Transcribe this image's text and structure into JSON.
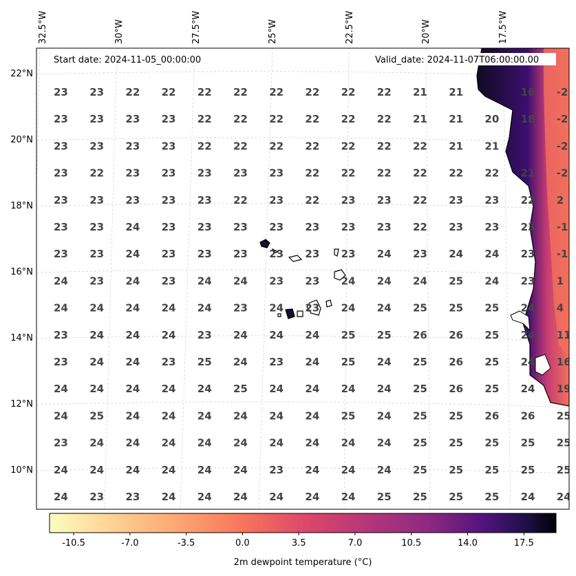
{
  "header": {
    "start_date": "Start date: 2024-11-05_00:00:00",
    "valid_date": "Valid_date: 2024-11-07T06:00:00.00"
  },
  "axes": {
    "lon_labels": [
      "32.5°W",
      "30°W",
      "27.5°W",
      "25°W",
      "22.5°W",
      "20°W",
      "17.5°W"
    ],
    "lat_labels": [
      "22°N",
      "20°N",
      "18°N",
      "16°N",
      "14°N",
      "12°N",
      "10°N"
    ]
  },
  "colorbar": {
    "label": "2m dewpoint temperature ($^\\circ$C)",
    "ticks": [
      "-10.5",
      "-7.0",
      "-3.5",
      "0.0",
      "3.5",
      "7.0",
      "10.5",
      "14.0",
      "17.5"
    ],
    "colormap": "magma_r",
    "range": [
      -12.0,
      19.5
    ]
  },
  "colors": {
    "grid_values": "#444444",
    "land_dark": "#100b20",
    "coast_hot": "#f0685e",
    "colorbar_low": "#fcfdbf",
    "colorbar_high": "#000004"
  },
  "value_grid": [
    [
      "23",
      "23",
      "22",
      "22",
      "22",
      "22",
      "22",
      "22",
      "22",
      "22",
      "21",
      "21",
      "",
      "16",
      "-2"
    ],
    [
      "23",
      "23",
      "23",
      "23",
      "22",
      "22",
      "22",
      "22",
      "22",
      "22",
      "21",
      "21",
      "20",
      "18",
      "-2"
    ],
    [
      "23",
      "23",
      "23",
      "23",
      "22",
      "22",
      "22",
      "22",
      "22",
      "22",
      "22",
      "21",
      "21",
      "",
      "-2"
    ],
    [
      "23",
      "22",
      "23",
      "23",
      "23",
      "23",
      "23",
      "22",
      "22",
      "22",
      "22",
      "22",
      "22",
      "21",
      "-2"
    ],
    [
      "23",
      "23",
      "23",
      "23",
      "23",
      "22",
      "23",
      "22",
      "23",
      "23",
      "22",
      "23",
      "23",
      "22",
      "2"
    ],
    [
      "23",
      "23",
      "24",
      "23",
      "23",
      "23",
      "23",
      "23",
      "23",
      "23",
      "22",
      "23",
      "23",
      "23",
      "-1"
    ],
    [
      "23",
      "23",
      "24",
      "23",
      "23",
      "23",
      "23",
      "23",
      "23",
      "24",
      "23",
      "24",
      "24",
      "23",
      "-1"
    ],
    [
      "24",
      "23",
      "24",
      "23",
      "24",
      "24",
      "23",
      "23",
      "24",
      "24",
      "24",
      "25",
      "24",
      "23",
      "1"
    ],
    [
      "24",
      "24",
      "24",
      "24",
      "24",
      "23",
      "24",
      "23",
      "24",
      "24",
      "25",
      "25",
      "25",
      "24",
      "4"
    ],
    [
      "23",
      "24",
      "24",
      "24",
      "23",
      "24",
      "24",
      "24",
      "25",
      "25",
      "26",
      "26",
      "25",
      "24",
      "11"
    ],
    [
      "23",
      "24",
      "24",
      "23",
      "25",
      "24",
      "23",
      "24",
      "25",
      "24",
      "25",
      "26",
      "25",
      "24",
      "16"
    ],
    [
      "24",
      "24",
      "24",
      "24",
      "24",
      "25",
      "24",
      "24",
      "24",
      "24",
      "25",
      "26",
      "25",
      "24",
      "19"
    ],
    [
      "24",
      "25",
      "24",
      "24",
      "24",
      "24",
      "24",
      "24",
      "25",
      "24",
      "25",
      "25",
      "26",
      "26",
      "25"
    ],
    [
      "23",
      "24",
      "24",
      "24",
      "24",
      "24",
      "24",
      "24",
      "24",
      "24",
      "25",
      "25",
      "25",
      "25",
      "25"
    ],
    [
      "24",
      "24",
      "24",
      "24",
      "24",
      "24",
      "23",
      "24",
      "24",
      "24",
      "25",
      "25",
      "25",
      "25",
      "25"
    ],
    [
      "24",
      "23",
      "23",
      "24",
      "24",
      "24",
      "24",
      "24",
      "24",
      "25",
      "25",
      "25",
      "25",
      "24",
      "24"
    ]
  ]
}
